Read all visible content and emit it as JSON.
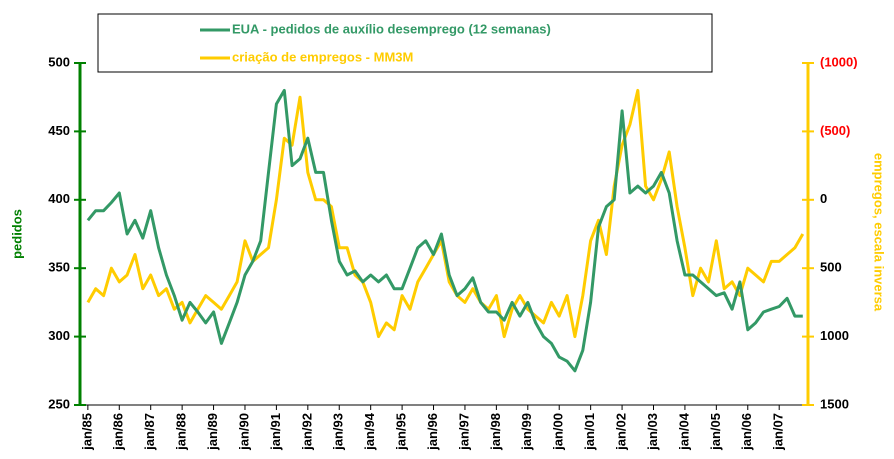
{
  "chart_data": {
    "type": "line",
    "legend": "top",
    "y_label": "pedidos",
    "y2_label": "empregos, escala inversa",
    "y_color": "#008000",
    "y2_color": "#ffcc00",
    "y2_negative_color": "#ff0000",
    "y2_inverted": true,
    "ylim": [
      250,
      500
    ],
    "yticks": [
      250,
      300,
      350,
      400,
      450,
      500
    ],
    "y2lim": [
      -1000,
      1500
    ],
    "y2ticks": [
      {
        "value": -1000,
        "label": "(1000)"
      },
      {
        "value": -500,
        "label": "(500)"
      },
      0,
      500,
      1000,
      1500
    ],
    "xlim": [
      "1984-10",
      "2007-12"
    ],
    "xticks": [
      {
        "value": "1985-01",
        "label": "jan/85"
      },
      {
        "value": "1986-01",
        "label": "jan/86"
      },
      {
        "value": "1987-01",
        "label": "jan/87"
      },
      {
        "value": "1988-01",
        "label": "jan/88"
      },
      {
        "value": "1989-01",
        "label": "jan/89"
      },
      {
        "value": "1990-01",
        "label": "jan/90"
      },
      {
        "value": "1991-01",
        "label": "jan/91"
      },
      {
        "value": "1992-01",
        "label": "jan/92"
      },
      {
        "value": "1993-01",
        "label": "jan/93"
      },
      {
        "value": "1994-01",
        "label": "jan/94"
      },
      {
        "value": "1995-01",
        "label": "jan/95"
      },
      {
        "value": "1996-01",
        "label": "jan/96"
      },
      {
        "value": "1997-01",
        "label": "jan/97"
      },
      {
        "value": "1998-01",
        "label": "jan/98"
      },
      {
        "value": "1999-01",
        "label": "jan/99"
      },
      {
        "value": "2000-01",
        "label": "jan/00"
      },
      {
        "value": "2001-01",
        "label": "jan/01"
      },
      {
        "value": "2002-01",
        "label": "jan/02"
      },
      {
        "value": "2003-01",
        "label": "jan/03"
      },
      {
        "value": "2004-01",
        "label": "jan/04"
      },
      {
        "value": "2005-01",
        "label": "jan/05"
      },
      {
        "value": "2006-01",
        "label": "jan/06"
      },
      {
        "value": "2007-01",
        "label": "jan/07"
      }
    ],
    "x": [
      "1985-01",
      "1985-04",
      "1985-07",
      "1985-10",
      "1986-01",
      "1986-04",
      "1986-07",
      "1986-10",
      "1987-01",
      "1987-04",
      "1987-07",
      "1987-10",
      "1988-01",
      "1988-04",
      "1988-07",
      "1988-10",
      "1989-01",
      "1989-04",
      "1989-07",
      "1989-10",
      "1990-01",
      "1990-04",
      "1990-07",
      "1990-10",
      "1991-01",
      "1991-04",
      "1991-07",
      "1991-10",
      "1992-01",
      "1992-04",
      "1992-07",
      "1992-10",
      "1993-01",
      "1993-04",
      "1993-07",
      "1993-10",
      "1994-01",
      "1994-04",
      "1994-07",
      "1994-10",
      "1995-01",
      "1995-04",
      "1995-07",
      "1995-10",
      "1996-01",
      "1996-04",
      "1996-07",
      "1996-10",
      "1997-01",
      "1997-04",
      "1997-07",
      "1997-10",
      "1998-01",
      "1998-04",
      "1998-07",
      "1998-10",
      "1999-01",
      "1999-04",
      "1999-07",
      "1999-10",
      "2000-01",
      "2000-04",
      "2000-07",
      "2000-10",
      "2001-01",
      "2001-04",
      "2001-07",
      "2001-10",
      "2002-01",
      "2002-04",
      "2002-07",
      "2002-10",
      "2003-01",
      "2003-04",
      "2003-07",
      "2003-10",
      "2004-01",
      "2004-04",
      "2004-07",
      "2004-10",
      "2005-01",
      "2005-04",
      "2005-07",
      "2005-10",
      "2006-01",
      "2006-04",
      "2006-07",
      "2006-10",
      "2007-01",
      "2007-04",
      "2007-07",
      "2007-10"
    ],
    "series": [
      {
        "name": "EUA - pedidos de auxílio desemprego (12 semanas)",
        "color": "#339966",
        "values": [
          385,
          392,
          392,
          398,
          405,
          375,
          385,
          372,
          392,
          365,
          345,
          330,
          312,
          325,
          318,
          310,
          318,
          295,
          310,
          325,
          345,
          355,
          370,
          420,
          470,
          480,
          425,
          430,
          445,
          420,
          420,
          385,
          355,
          345,
          348,
          340,
          345,
          340,
          345,
          335,
          335,
          350,
          365,
          370,
          360,
          375,
          345,
          330,
          335,
          343,
          325,
          318,
          318,
          312,
          325,
          315,
          325,
          310,
          300,
          295,
          285,
          282,
          275,
          290,
          325,
          380,
          395,
          400,
          465,
          405,
          410,
          405,
          410,
          420,
          405,
          370,
          345,
          345,
          340,
          335,
          330,
          332,
          320,
          340,
          305,
          310,
          318,
          320,
          322,
          328,
          315,
          315
        ]
      },
      {
        "name": "criação de empregos - MM3M",
        "color": "#ffcc00",
        "axis": "y2",
        "values": [
          750,
          650,
          700,
          500,
          600,
          550,
          400,
          650,
          550,
          700,
          650,
          800,
          750,
          900,
          800,
          700,
          750,
          800,
          700,
          600,
          300,
          450,
          400,
          350,
          0,
          -450,
          -400,
          -750,
          -200,
          0,
          0,
          50,
          350,
          350,
          550,
          600,
          750,
          1000,
          900,
          950,
          700,
          800,
          600,
          500,
          400,
          300,
          600,
          700,
          750,
          650,
          750,
          800,
          700,
          1000,
          800,
          700,
          800,
          850,
          900,
          750,
          850,
          700,
          1000,
          700,
          300,
          150,
          400,
          -100,
          -400,
          -550,
          -800,
          -100,
          0,
          -150,
          -350,
          50,
          350,
          700,
          500,
          600,
          300,
          650,
          600,
          700,
          500,
          550,
          600,
          450,
          450,
          400,
          350,
          250
        ]
      }
    ]
  }
}
